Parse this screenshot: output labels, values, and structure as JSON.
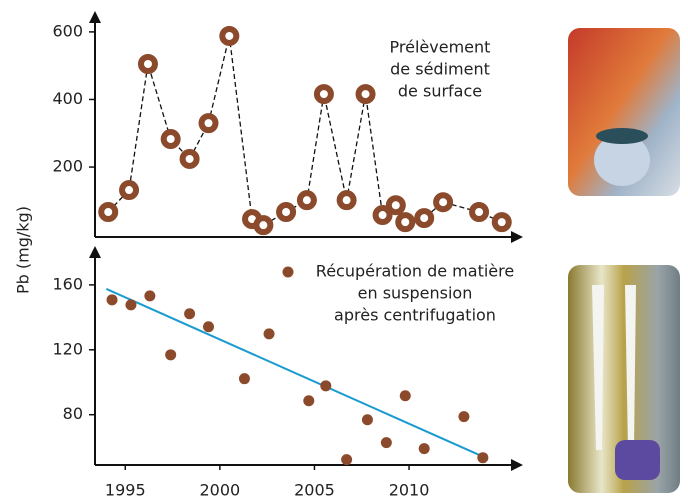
{
  "chart_data": [
    {
      "type": "line",
      "annotation": [
        "Prélèvement",
        "de sédiment",
        "de surface"
      ],
      "x": [
        1994.1,
        1995.2,
        1996.2,
        1997.4,
        1998.4,
        1999.4,
        2000.5,
        2001.7,
        2002.3,
        2003.5,
        2004.6,
        2005.5,
        2006.7,
        2007.7,
        2008.6,
        2009.3,
        2009.8,
        2010.8,
        2011.8,
        2013.7,
        2014.9
      ],
      "series": [
        {
          "color": "#8b4a2b",
          "values": [
            67,
            132,
            505,
            283,
            224,
            330,
            588,
            46,
            28,
            67,
            102,
            416,
            102,
            416,
            58,
            87,
            37,
            49,
            96,
            67,
            37
          ]
        }
      ],
      "xlim": [
        1993.4,
        2015.6
      ],
      "ylim": [
        -7,
        650
      ],
      "yticks": [
        200,
        400,
        600
      ]
    },
    {
      "type": "scatter",
      "annotation": [
        "Récupération de matière",
        "en suspension",
        "après centrifugation"
      ],
      "y_label": "Pb (mg/kg)",
      "x": [
        1994.3,
        1995.3,
        1996.3,
        1997.4,
        1998.4,
        1999.4,
        2001.3,
        2002.6,
        2004.7,
        2005.6,
        2006.7,
        2007.8,
        2008.8,
        2009.8,
        2010.8,
        2012.9,
        2013.9
      ],
      "series": [
        {
          "color": "#8b4a2b",
          "values": [
            150.8,
            147.7,
            153.2,
            116.9,
            142.2,
            134.2,
            102.2,
            129.8,
            88.6,
            97.8,
            52.3,
            76.9,
            62.8,
            91.7,
            59.1,
            78.8,
            53.5
          ]
        }
      ],
      "trend": {
        "x": [
          1994.0,
          2013.9
        ],
        "values": [
          157.5,
          54.2
        ],
        "color": "#1a9bd0"
      },
      "xlim": [
        1993.4,
        2015.6
      ],
      "ylim": [
        49,
        181.5
      ],
      "xticks": [
        1995,
        2000,
        2005,
        2010
      ],
      "yticks": [
        80,
        120,
        160
      ]
    }
  ]
}
